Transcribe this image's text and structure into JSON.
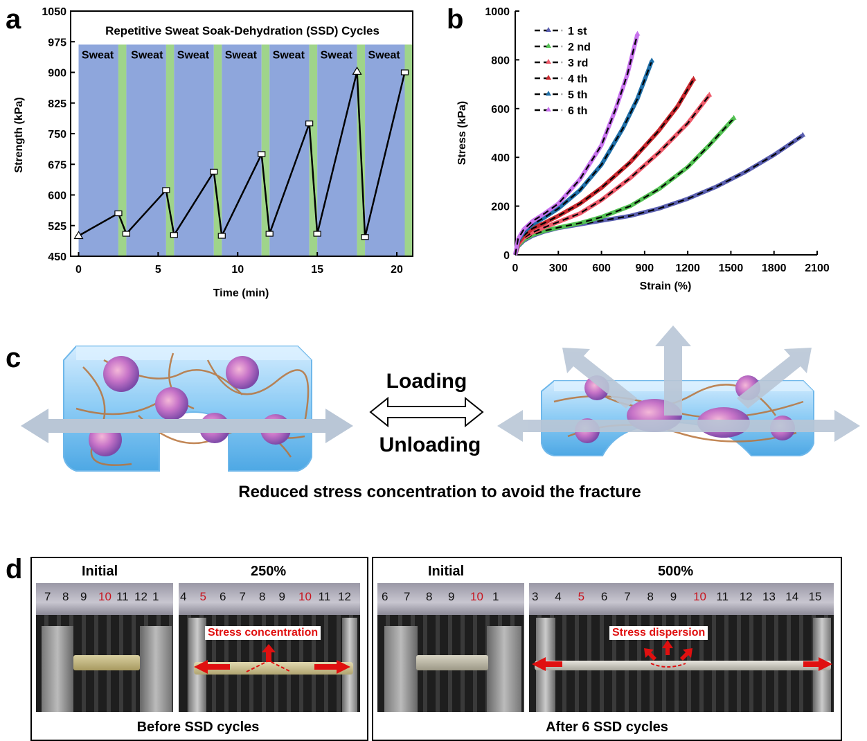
{
  "panels": {
    "a": "a",
    "b": "b",
    "c": "c",
    "d": "d"
  },
  "panel_a": {
    "title": "Repetitive Sweat Soak-Dehydration (SSD) Cycles",
    "band_label": "Sweat",
    "colors": {
      "sweat": "#8ea6dc",
      "dehydration": "#9fd48a"
    }
  },
  "panel_b": {
    "legend": [
      "1 st",
      "2 nd",
      "3 rd",
      "4 th",
      "5 th",
      "6 th"
    ],
    "colors": [
      "#5a5fb0",
      "#52c152",
      "#ee5a6a",
      "#c8282e",
      "#1f6fa8",
      "#c872ee"
    ]
  },
  "panel_c": {
    "loading": "Loading",
    "unloading": "Unloading",
    "caption": "Reduced stress concentration to avoid the fracture"
  },
  "panel_d": {
    "left": {
      "initial": "Initial",
      "strain": "250%",
      "label": "Stress concentration",
      "caption": "Before SSD cycles",
      "ruler_initial": [
        "7",
        "8",
        "9",
        "10",
        "11",
        "12",
        "1"
      ],
      "ruler_strain": [
        "4",
        "5",
        "6",
        "7",
        "8",
        "9",
        "10",
        "11",
        "12"
      ]
    },
    "right": {
      "initial": "Initial",
      "strain": "500%",
      "label": "Stress dispersion",
      "caption": "After 6 SSD cycles",
      "ruler_initial": [
        "6",
        "7",
        "8",
        "9",
        "10",
        "1"
      ],
      "ruler_strain": [
        "3",
        "4",
        "5",
        "6",
        "7",
        "8",
        "9",
        "10",
        "11",
        "12",
        "13",
        "14",
        "15"
      ]
    }
  },
  "chart_data": [
    {
      "type": "line",
      "title": "Repetitive Sweat Soak-Dehydration (SSD) Cycles",
      "xlabel": "Time (min)",
      "ylabel": "Strength (kPa)",
      "xlim": [
        -0.5,
        21
      ],
      "ylim": [
        450,
        1050
      ],
      "xticks": [
        0,
        5,
        10,
        15,
        20
      ],
      "yticks": [
        450,
        525,
        600,
        675,
        750,
        825,
        900,
        975,
        1050
      ],
      "x": [
        0,
        2.5,
        3,
        5.5,
        6,
        8.5,
        9,
        11.5,
        12,
        14.5,
        15,
        17.5,
        18,
        20.5
      ],
      "y": [
        500,
        555,
        505,
        612,
        502,
        657,
        500,
        700,
        505,
        775,
        505,
        902,
        497,
        900
      ],
      "markers": [
        "triangle",
        "square",
        "square",
        "square",
        "square",
        "square",
        "square",
        "square",
        "square",
        "square",
        "square",
        "triangle",
        "square",
        "square"
      ],
      "bands": [
        {
          "type": "sweat",
          "x": [
            0,
            2.5
          ]
        },
        {
          "type": "dehydration",
          "x": [
            2.5,
            3
          ]
        },
        {
          "type": "sweat",
          "x": [
            3,
            5.5
          ]
        },
        {
          "type": "dehydration",
          "x": [
            5.5,
            6
          ]
        },
        {
          "type": "sweat",
          "x": [
            6,
            8.5
          ]
        },
        {
          "type": "dehydration",
          "x": [
            8.5,
            9
          ]
        },
        {
          "type": "sweat",
          "x": [
            9,
            11.5
          ]
        },
        {
          "type": "dehydration",
          "x": [
            11.5,
            12
          ]
        },
        {
          "type": "sweat",
          "x": [
            12,
            14.5
          ]
        },
        {
          "type": "dehydration",
          "x": [
            14.5,
            15
          ]
        },
        {
          "type": "sweat",
          "x": [
            15,
            17.5
          ]
        },
        {
          "type": "dehydration",
          "x": [
            17.5,
            18
          ]
        },
        {
          "type": "sweat",
          "x": [
            18,
            20.5
          ]
        },
        {
          "type": "dehydration",
          "x": [
            20.5,
            21
          ]
        }
      ],
      "sweat_label_x": [
        1.2,
        4.3,
        7.2,
        10.2,
        13.2,
        16.2,
        19.2
      ],
      "grid": false
    },
    {
      "type": "line",
      "xlabel": "Strain (%)",
      "ylabel": "Stress (kPa)",
      "xlim": [
        0,
        2100
      ],
      "ylim": [
        0,
        1000
      ],
      "xticks": [
        0,
        300,
        600,
        900,
        1200,
        1500,
        1800,
        2100
      ],
      "yticks": [
        0,
        200,
        400,
        600,
        800,
        1000
      ],
      "legend_position": "top-left",
      "grid": false,
      "series": [
        {
          "name": "1 st",
          "x": [
            0,
            20,
            60,
            120,
            200,
            300,
            450,
            600,
            800,
            1000,
            1200,
            1400,
            1600,
            1800,
            2000
          ],
          "y": [
            0,
            35,
            58,
            78,
            95,
            110,
            125,
            140,
            160,
            190,
            230,
            280,
            340,
            410,
            490
          ]
        },
        {
          "name": "2 nd",
          "x": [
            0,
            20,
            60,
            120,
            200,
            300,
            450,
            600,
            800,
            1000,
            1200,
            1350,
            1520
          ],
          "y": [
            0,
            38,
            62,
            82,
            98,
            112,
            130,
            155,
            200,
            270,
            360,
            450,
            560
          ]
        },
        {
          "name": "3 rd",
          "x": [
            0,
            20,
            60,
            120,
            200,
            300,
            450,
            600,
            800,
            1000,
            1200,
            1350
          ],
          "y": [
            0,
            42,
            70,
            92,
            112,
            135,
            170,
            225,
            315,
            420,
            540,
            655
          ]
        },
        {
          "name": "4 th",
          "x": [
            0,
            20,
            60,
            120,
            200,
            300,
            450,
            600,
            800,
            1000,
            1130,
            1240
          ],
          "y": [
            0,
            48,
            80,
            108,
            130,
            160,
            210,
            275,
            380,
            510,
            610,
            720
          ]
        },
        {
          "name": "5 th",
          "x": [
            0,
            20,
            60,
            120,
            200,
            300,
            450,
            600,
            750,
            850,
            950
          ],
          "y": [
            0,
            58,
            95,
            125,
            152,
            190,
            265,
            370,
            520,
            640,
            795
          ]
        },
        {
          "name": "6 th",
          "x": [
            0,
            20,
            60,
            120,
            200,
            300,
            450,
            600,
            700,
            780,
            850
          ],
          "y": [
            0,
            65,
            105,
            138,
            168,
            210,
            310,
            450,
            600,
            740,
            905
          ]
        }
      ]
    }
  ]
}
